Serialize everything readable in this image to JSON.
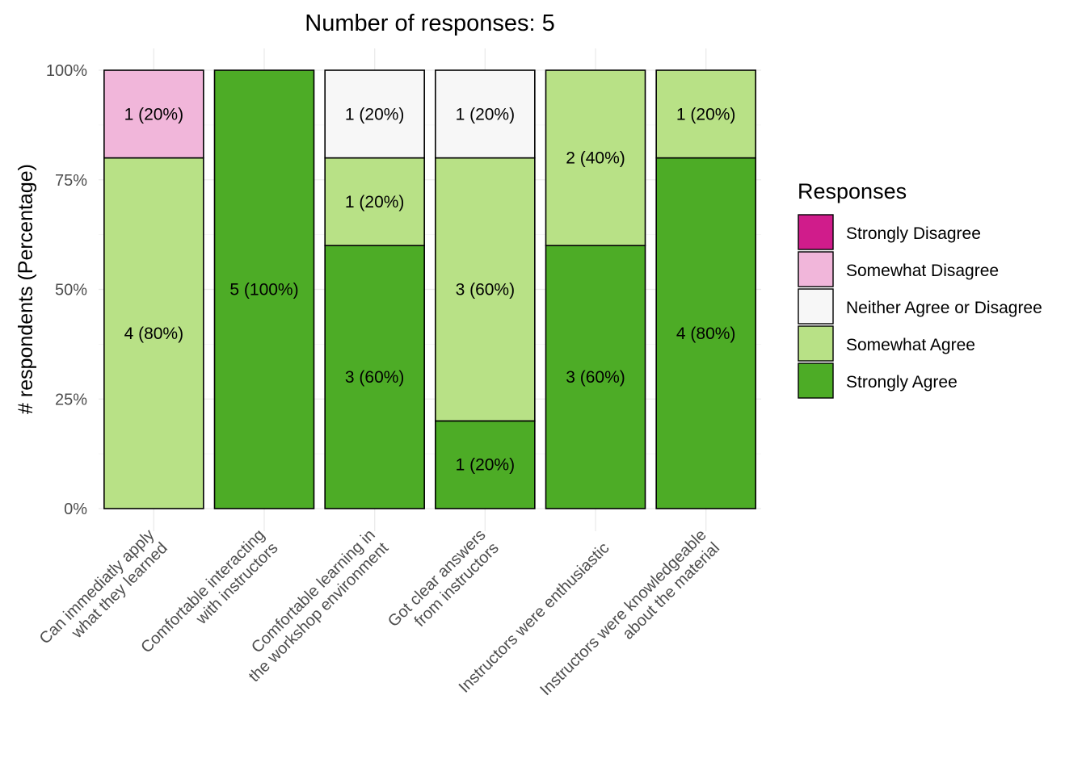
{
  "chart_data": {
    "type": "bar",
    "stacked": true,
    "title": "Number of responses: 5",
    "ylabel": "# respondents (Percentage)",
    "xlabel": "",
    "ylim": [
      0,
      100
    ],
    "yticks": [
      "0%",
      "25%",
      "50%",
      "75%",
      "100%"
    ],
    "ytick_values": [
      0,
      25,
      50,
      75,
      100
    ],
    "categories": [
      [
        "Can immediatly apply",
        "what they learned"
      ],
      [
        "Comfortable interacting",
        "with instructors"
      ],
      [
        "Comfortable learning in",
        "the workshop environment"
      ],
      [
        "Got clear answers",
        "from instructors"
      ],
      [
        "Instructors were enthusiastic"
      ],
      [
        "Instructors were knowledgeable",
        "about the material"
      ]
    ],
    "series": [
      {
        "name": "Strongly Agree",
        "color": "#4dac26",
        "counts": [
          0,
          5,
          3,
          1,
          3,
          4
        ],
        "values": [
          0,
          100,
          60,
          20,
          60,
          80
        ],
        "labels": [
          "",
          "5 (100%)",
          "3 (60%)",
          "1 (20%)",
          "3 (60%)",
          "4 (80%)"
        ]
      },
      {
        "name": "Somewhat Agree",
        "color": "#b8e186",
        "counts": [
          4,
          0,
          1,
          3,
          2,
          1
        ],
        "values": [
          80,
          0,
          20,
          60,
          40,
          20
        ],
        "labels": [
          "4 (80%)",
          "",
          "1 (20%)",
          "3 (60%)",
          "2 (40%)",
          "1 (20%)"
        ]
      },
      {
        "name": "Neither Agree or Disagree",
        "color": "#f7f7f7",
        "counts": [
          0,
          0,
          1,
          1,
          0,
          0
        ],
        "values": [
          0,
          0,
          20,
          20,
          0,
          0
        ],
        "labels": [
          "",
          "",
          "1 (20%)",
          "1 (20%)",
          "",
          ""
        ]
      },
      {
        "name": "Somewhat Disagree",
        "color": "#f1b6da",
        "counts": [
          1,
          0,
          0,
          0,
          0,
          0
        ],
        "values": [
          20,
          0,
          0,
          0,
          0,
          0
        ],
        "labels": [
          "1 (20%)",
          "",
          "",
          "",
          "",
          ""
        ]
      },
      {
        "name": "Strongly Disagree",
        "color": "#d01c8b",
        "counts": [
          0,
          0,
          0,
          0,
          0,
          0
        ],
        "values": [
          0,
          0,
          0,
          0,
          0,
          0
        ],
        "labels": [
          "",
          "",
          "",
          "",
          "",
          ""
        ]
      }
    ],
    "legend": {
      "title": "Responses",
      "position": "right",
      "entries": [
        "Strongly Disagree",
        "Somewhat Disagree",
        "Neither Agree or Disagree",
        "Somewhat Agree",
        "Strongly Agree"
      ]
    },
    "grid": true
  }
}
